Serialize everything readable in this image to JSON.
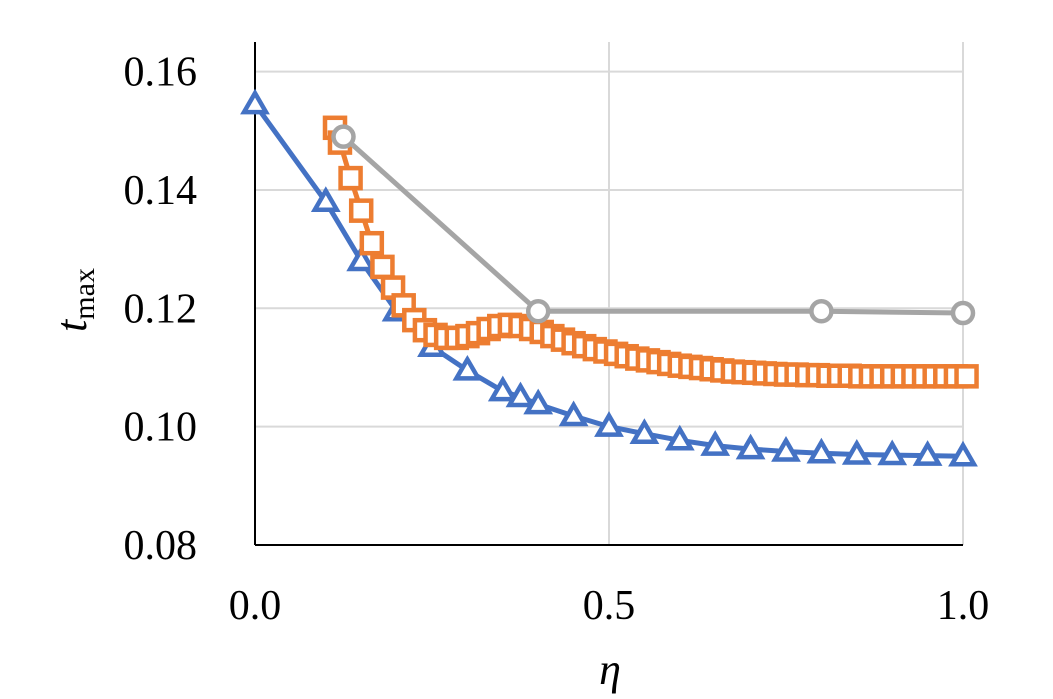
{
  "chart_data": {
    "type": "line",
    "title": "",
    "xlabel": "η",
    "ylabel_main": "t",
    "ylabel_sub": "max",
    "xlim": [
      0,
      1
    ],
    "ylim": [
      0.08,
      0.165
    ],
    "x_ticks": [
      0.0,
      0.5,
      1.0
    ],
    "x_tick_labels": [
      "0.0",
      "0.5",
      "1.0"
    ],
    "y_ticks": [
      0.08,
      0.1,
      0.12,
      0.14,
      0.16
    ],
    "y_tick_labels": [
      "0.08",
      "0.10",
      "0.12",
      "0.14",
      "0.16"
    ],
    "grid": true,
    "legend": "none",
    "series": [
      {
        "color": "#4472c4",
        "marker": "triangle",
        "points": [
          [
            0.0,
            0.1545
          ],
          [
            0.1,
            0.138
          ],
          [
            0.15,
            0.128
          ],
          [
            0.2,
            0.1195
          ],
          [
            0.25,
            0.1135
          ],
          [
            0.3,
            0.1095
          ],
          [
            0.35,
            0.106
          ],
          [
            0.375,
            0.105
          ],
          [
            0.4,
            0.1038
          ],
          [
            0.45,
            0.1018
          ],
          [
            0.5,
            0.1
          ],
          [
            0.55,
            0.0988
          ],
          [
            0.6,
            0.0977
          ],
          [
            0.65,
            0.0968
          ],
          [
            0.7,
            0.0962
          ],
          [
            0.75,
            0.0958
          ],
          [
            0.8,
            0.0955
          ],
          [
            0.85,
            0.0953
          ],
          [
            0.9,
            0.0952
          ],
          [
            0.95,
            0.0951
          ],
          [
            1.0,
            0.095
          ]
        ]
      },
      {
        "color": "#ed7d31",
        "marker": "square",
        "points": [
          [
            0.113,
            0.1505
          ],
          [
            0.12,
            0.148
          ],
          [
            0.135,
            0.142
          ],
          [
            0.15,
            0.1365
          ],
          [
            0.165,
            0.131
          ],
          [
            0.18,
            0.127
          ],
          [
            0.195,
            0.1235
          ],
          [
            0.21,
            0.1205
          ],
          [
            0.225,
            0.118
          ],
          [
            0.24,
            0.1163
          ],
          [
            0.255,
            0.1155
          ],
          [
            0.27,
            0.115
          ],
          [
            0.285,
            0.115
          ],
          [
            0.3,
            0.1153
          ],
          [
            0.315,
            0.1158
          ],
          [
            0.33,
            0.1165
          ],
          [
            0.345,
            0.117
          ],
          [
            0.36,
            0.1172
          ],
          [
            0.375,
            0.117
          ],
          [
            0.39,
            0.1165
          ],
          [
            0.405,
            0.116
          ],
          [
            0.42,
            0.1153
          ],
          [
            0.435,
            0.1147
          ],
          [
            0.45,
            0.1141
          ],
          [
            0.465,
            0.1136
          ],
          [
            0.48,
            0.1131
          ],
          [
            0.495,
            0.1127
          ],
          [
            0.51,
            0.1123
          ],
          [
            0.525,
            0.1119
          ],
          [
            0.54,
            0.1115
          ],
          [
            0.555,
            0.1112
          ],
          [
            0.57,
            0.1109
          ],
          [
            0.585,
            0.1106
          ],
          [
            0.6,
            0.1103
          ],
          [
            0.615,
            0.1101
          ],
          [
            0.63,
            0.1099
          ],
          [
            0.645,
            0.1097
          ],
          [
            0.66,
            0.1095
          ],
          [
            0.675,
            0.1093
          ],
          [
            0.69,
            0.1092
          ],
          [
            0.705,
            0.1091
          ],
          [
            0.72,
            0.109
          ],
          [
            0.735,
            0.1089
          ],
          [
            0.75,
            0.1088
          ],
          [
            0.765,
            0.1088
          ],
          [
            0.78,
            0.1087
          ],
          [
            0.795,
            0.1087
          ],
          [
            0.81,
            0.1086
          ],
          [
            0.825,
            0.1086
          ],
          [
            0.84,
            0.1086
          ],
          [
            0.855,
            0.1085
          ],
          [
            0.87,
            0.1085
          ],
          [
            0.885,
            0.1085
          ],
          [
            0.9,
            0.1085
          ],
          [
            0.915,
            0.1085
          ],
          [
            0.93,
            0.1085
          ],
          [
            0.945,
            0.1085
          ],
          [
            0.96,
            0.1085
          ],
          [
            0.975,
            0.1085
          ],
          [
            0.99,
            0.1085
          ],
          [
            1.005,
            0.1085
          ]
        ]
      },
      {
        "color": "#a5a5a5",
        "marker": "circle",
        "points": [
          [
            0.125,
            0.149
          ],
          [
            0.4,
            0.1195
          ],
          [
            0.8,
            0.1195
          ],
          [
            1.0,
            0.1192
          ]
        ]
      }
    ]
  }
}
